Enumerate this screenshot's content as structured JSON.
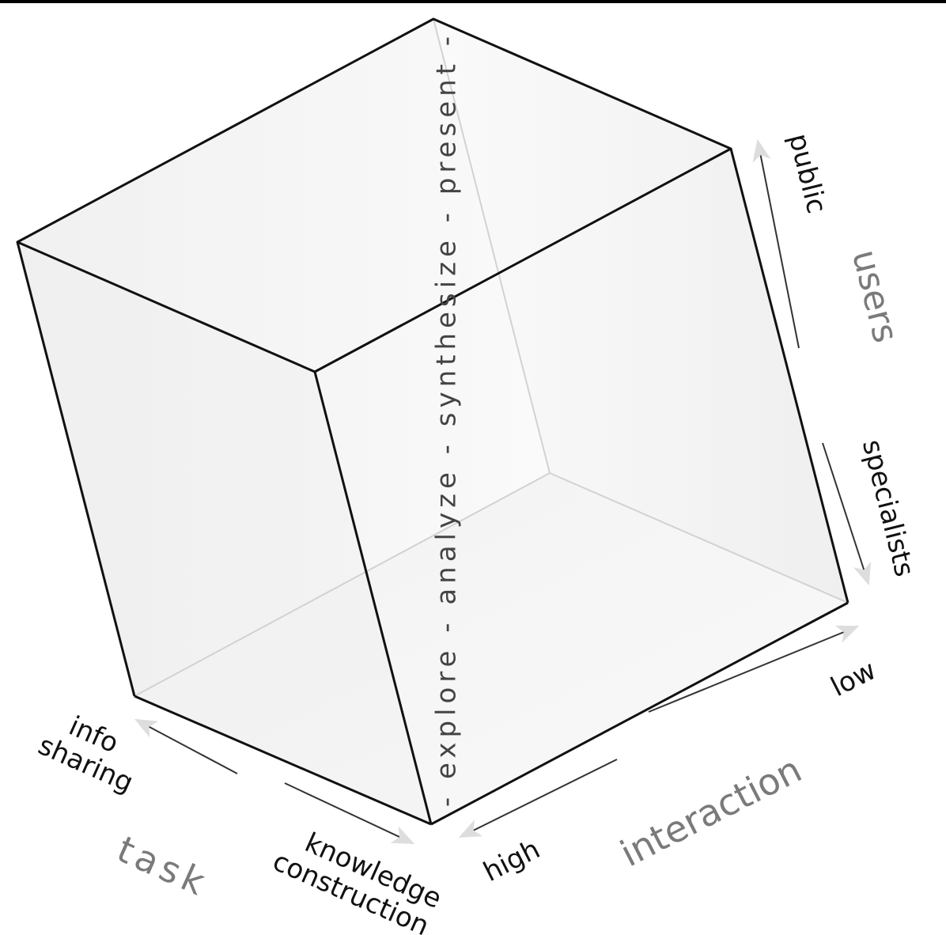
{
  "diagram": {
    "vertical_axis_text": "- explore - analyze - synthesize - present -",
    "users_axis": {
      "title": "users",
      "top_label": "public",
      "bottom_label": "specialists"
    },
    "interaction_axis": {
      "title": "interaction",
      "far_label": "low",
      "near_label": "high"
    },
    "task_axis": {
      "title": "task",
      "far_label_line1": "info",
      "far_label_line2": "sharing",
      "near_label_line1": "knowledge",
      "near_label_line2": "construction"
    }
  }
}
